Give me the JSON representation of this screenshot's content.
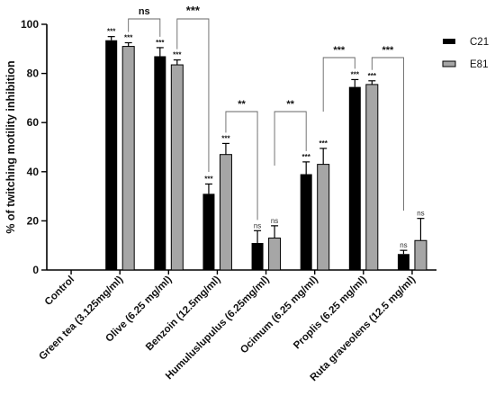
{
  "chart_data": {
    "type": "bar",
    "ylabel": "% of twitching motility inhibition",
    "xlabel": "",
    "ylim": [
      0,
      100
    ],
    "yticks": [
      0,
      20,
      40,
      60,
      80,
      100
    ],
    "categories": [
      "Control",
      "Green tea (3.125mg/ml)",
      "Olive (6.25 mg/ml)",
      "Benzoin (12.5mg/ml)",
      "Humuluslupulus (6.25mg/ml)",
      "Ocimum (6.25 mg/ml)",
      "Proplis (6.25 mg/ml)",
      "Ruta graveolens (12.5 mg/ml)"
    ],
    "series": [
      {
        "name": "C21",
        "color": "#000000",
        "values": [
          0,
          93.5,
          87,
          31,
          11,
          39,
          74.5,
          6.5
        ],
        "errors": [
          0,
          1.5,
          3.5,
          4,
          5,
          5,
          3,
          1.5
        ],
        "significance": [
          "",
          "***",
          "***",
          "***",
          "ns",
          "***",
          "***",
          "ns"
        ]
      },
      {
        "name": "E81",
        "color": "#a6a6a6",
        "values": [
          0,
          91,
          83.5,
          47,
          13,
          43,
          75.5,
          12
        ],
        "errors": [
          0,
          1.5,
          2,
          4.5,
          5,
          6.5,
          1.5,
          9
        ],
        "significance": [
          "",
          "***",
          "***",
          "***",
          "ns",
          "***",
          "***",
          "ns"
        ]
      }
    ],
    "brackets": [
      {
        "from": 1,
        "to": 2,
        "label": "ns"
      },
      {
        "from": 2,
        "to": 3,
        "label": "***"
      },
      {
        "from": 3,
        "to": 4,
        "label": "**"
      },
      {
        "from": 4,
        "to": 5,
        "label": "**"
      },
      {
        "from": 5,
        "to": 6,
        "label": "***"
      },
      {
        "from": 6,
        "to": 7,
        "label": "***"
      }
    ],
    "legend": [
      "C21",
      "E81"
    ],
    "legend_position": "top-right",
    "grid": false
  }
}
